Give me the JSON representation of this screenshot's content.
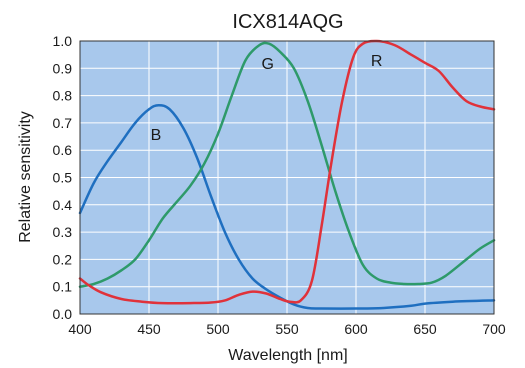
{
  "chart_data": {
    "type": "line",
    "title": "ICX814AQG",
    "xlabel": "Wavelength [nm]",
    "ylabel": "Relative sensitivity",
    "xlim": [
      400,
      700
    ],
    "ylim": [
      0,
      1.0
    ],
    "xticks": [
      "400",
      "450",
      "500",
      "550",
      "600",
      "650",
      "700"
    ],
    "yticks": [
      "0.0",
      "0.1",
      "0.2",
      "0.3",
      "0.4",
      "0.5",
      "0.6",
      "0.7",
      "0.8",
      "0.9",
      "1.0"
    ],
    "grid": true,
    "plot_background": "#a8c8ec",
    "grid_color": "#ffffff",
    "series": [
      {
        "name": "B",
        "color": "#1f6fc0",
        "label_at": [
          455,
          0.66
        ],
        "points": [
          [
            400,
            0.37
          ],
          [
            410,
            0.48
          ],
          [
            420,
            0.56
          ],
          [
            430,
            0.63
          ],
          [
            440,
            0.7
          ],
          [
            450,
            0.75
          ],
          [
            457,
            0.765
          ],
          [
            465,
            0.75
          ],
          [
            475,
            0.68
          ],
          [
            485,
            0.57
          ],
          [
            495,
            0.43
          ],
          [
            505,
            0.3
          ],
          [
            515,
            0.2
          ],
          [
            525,
            0.13
          ],
          [
            535,
            0.09
          ],
          [
            545,
            0.06
          ],
          [
            555,
            0.035
          ],
          [
            565,
            0.022
          ],
          [
            575,
            0.02
          ],
          [
            600,
            0.02
          ],
          [
            620,
            0.022
          ],
          [
            640,
            0.03
          ],
          [
            650,
            0.038
          ],
          [
            670,
            0.045
          ],
          [
            700,
            0.05
          ]
        ]
      },
      {
        "name": "G",
        "color": "#2e9a6a",
        "label_at": [
          536,
          0.92
        ],
        "points": [
          [
            400,
            0.1
          ],
          [
            410,
            0.11
          ],
          [
            420,
            0.13
          ],
          [
            430,
            0.16
          ],
          [
            440,
            0.2
          ],
          [
            450,
            0.27
          ],
          [
            460,
            0.35
          ],
          [
            470,
            0.41
          ],
          [
            480,
            0.47
          ],
          [
            490,
            0.55
          ],
          [
            500,
            0.66
          ],
          [
            510,
            0.8
          ],
          [
            520,
            0.93
          ],
          [
            530,
            0.985
          ],
          [
            537,
            0.99
          ],
          [
            545,
            0.96
          ],
          [
            555,
            0.9
          ],
          [
            565,
            0.78
          ],
          [
            575,
            0.62
          ],
          [
            585,
            0.45
          ],
          [
            595,
            0.3
          ],
          [
            605,
            0.18
          ],
          [
            615,
            0.13
          ],
          [
            625,
            0.115
          ],
          [
            635,
            0.11
          ],
          [
            645,
            0.11
          ],
          [
            655,
            0.115
          ],
          [
            665,
            0.14
          ],
          [
            680,
            0.2
          ],
          [
            690,
            0.24
          ],
          [
            700,
            0.27
          ]
        ]
      },
      {
        "name": "R",
        "color": "#e0323a",
        "label_at": [
          615,
          0.93
        ],
        "points": [
          [
            400,
            0.13
          ],
          [
            405,
            0.11
          ],
          [
            415,
            0.08
          ],
          [
            430,
            0.055
          ],
          [
            445,
            0.045
          ],
          [
            460,
            0.04
          ],
          [
            480,
            0.04
          ],
          [
            495,
            0.042
          ],
          [
            505,
            0.05
          ],
          [
            515,
            0.07
          ],
          [
            525,
            0.082
          ],
          [
            535,
            0.075
          ],
          [
            545,
            0.055
          ],
          [
            552,
            0.045
          ],
          [
            560,
            0.05
          ],
          [
            568,
            0.12
          ],
          [
            575,
            0.32
          ],
          [
            582,
            0.55
          ],
          [
            590,
            0.78
          ],
          [
            598,
            0.94
          ],
          [
            605,
            0.99
          ],
          [
            615,
            1.0
          ],
          [
            628,
            0.985
          ],
          [
            640,
            0.95
          ],
          [
            650,
            0.92
          ],
          [
            660,
            0.89
          ],
          [
            670,
            0.83
          ],
          [
            680,
            0.78
          ],
          [
            690,
            0.76
          ],
          [
            700,
            0.75
          ]
        ]
      }
    ]
  }
}
